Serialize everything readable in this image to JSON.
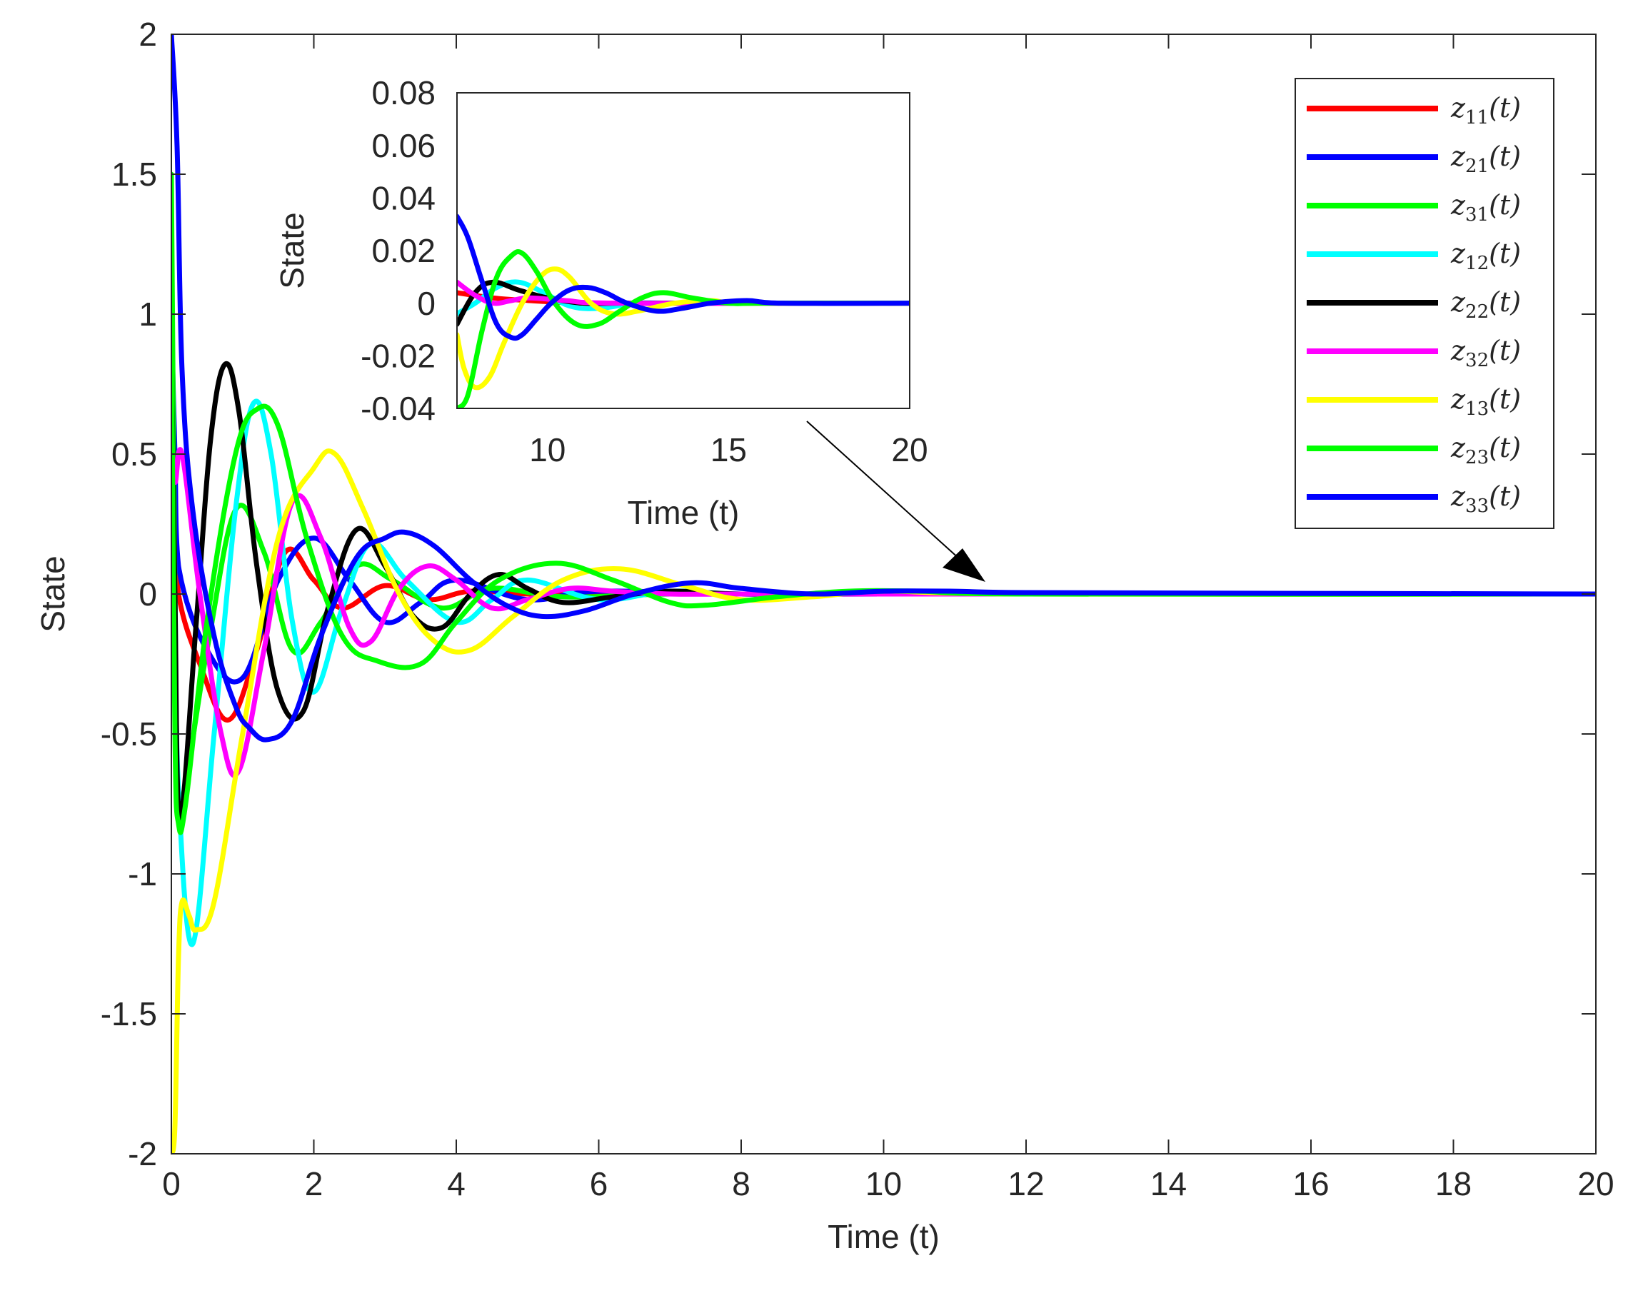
{
  "chart_data": [
    {
      "id": "main",
      "type": "line",
      "title": "",
      "xlabel": "Time (t)",
      "ylabel": "State",
      "xlim": [
        0,
        20
      ],
      "ylim": [
        -2,
        2
      ],
      "xticks": [
        0,
        2,
        4,
        6,
        8,
        10,
        12,
        14,
        16,
        18,
        20
      ],
      "yticks": [
        -2,
        -1.5,
        -1,
        -0.5,
        0,
        0.5,
        1,
        1.5,
        2
      ],
      "grid": false,
      "legend_position": "top-right",
      "series": [
        {
          "name": "z11(t)",
          "label_base": "z",
          "label_sub": "11",
          "label_arg": "(t)",
          "color": "#ff0000",
          "x": [
            0,
            0.05,
            0.1,
            0.4,
            0.8,
            1.2,
            1.6,
            2.0,
            2.4,
            3.0,
            3.6,
            4.2,
            5.0,
            6.0,
            8.0,
            10.0,
            20.0
          ],
          "y": [
            0.6,
            0.3,
            0.0,
            -0.25,
            -0.45,
            -0.2,
            0.15,
            0.05,
            -0.05,
            0.03,
            -0.02,
            0.01,
            0.0,
            0.0,
            0.0,
            0.0,
            0.0
          ]
        },
        {
          "name": "z21(t)",
          "label_base": "z",
          "label_sub": "21",
          "label_arg": "(t)",
          "color": "#0000ff",
          "x": [
            0,
            0.05,
            0.1,
            0.5,
            1.0,
            1.5,
            2.0,
            2.5,
            3.0,
            3.5,
            4.0,
            5.0,
            6.0,
            8.0,
            10.0,
            20.0
          ],
          "y": [
            1.0,
            0.5,
            0.1,
            -0.2,
            -0.3,
            0.05,
            0.2,
            0.05,
            -0.1,
            -0.03,
            0.05,
            -0.02,
            0.01,
            0.0,
            0.0,
            0.0
          ]
        },
        {
          "name": "z31(t)",
          "label_base": "z",
          "label_sub": "31",
          "label_arg": "(t)",
          "color": "#00ff00",
          "x": [
            0,
            0.05,
            0.1,
            0.5,
            0.9,
            1.3,
            1.7,
            2.1,
            2.6,
            3.1,
            3.8,
            4.5,
            5.5,
            7.0,
            9.0,
            20.0
          ],
          "y": [
            1.5,
            0.0,
            -0.75,
            -0.2,
            0.3,
            0.15,
            -0.2,
            -0.1,
            0.1,
            0.05,
            -0.05,
            0.02,
            -0.01,
            0.0,
            0.0,
            0.0
          ]
        },
        {
          "name": "z12(t)",
          "label_base": "z",
          "label_sub": "12",
          "label_arg": "(t)",
          "color": "#00ffff",
          "x": [
            0,
            0.05,
            0.1,
            0.3,
            0.6,
            0.9,
            1.15,
            1.4,
            1.7,
            2.0,
            2.4,
            2.8,
            3.3,
            4.0,
            4.5,
            5.0,
            6.0,
            7.0,
            8.0,
            10.0,
            20.0
          ],
          "y": [
            0.7,
            0.0,
            -0.7,
            -1.25,
            -0.5,
            0.3,
            0.68,
            0.5,
            -0.1,
            -0.35,
            -0.05,
            0.18,
            0.05,
            -0.1,
            -0.02,
            0.05,
            -0.02,
            0.01,
            0.0,
            0.0,
            0.0
          ]
        },
        {
          "name": "z22(t)",
          "label_base": "z",
          "label_sub": "22",
          "label_arg": "(t)",
          "color": "#000000",
          "x": [
            0,
            0.05,
            0.12,
            0.35,
            0.55,
            0.75,
            0.95,
            1.2,
            1.5,
            1.85,
            2.2,
            2.6,
            3.0,
            3.4,
            3.8,
            4.2,
            4.6,
            5.0,
            5.5,
            6.2,
            7.0,
            8.0,
            10.0,
            20.0
          ],
          "y": [
            0.9,
            0.0,
            -0.8,
            -0.1,
            0.55,
            0.82,
            0.65,
            0.1,
            -0.35,
            -0.42,
            -0.05,
            0.23,
            0.1,
            -0.08,
            -0.12,
            0.0,
            0.07,
            0.02,
            -0.03,
            -0.01,
            0.01,
            0.0,
            0.0,
            0.0
          ]
        },
        {
          "name": "z32(t)",
          "label_base": "z",
          "label_sub": "32",
          "label_arg": "(t)",
          "color": "#ff00ff",
          "x": [
            0,
            0.05,
            0.15,
            0.4,
            0.7,
            0.95,
            1.3,
            1.7,
            2.1,
            2.5,
            2.8,
            3.2,
            3.6,
            4.0,
            4.5,
            5.0,
            5.6,
            6.2,
            7.0,
            8.0,
            10.0,
            20.0
          ],
          "y": [
            0.6,
            0.4,
            0.5,
            0.0,
            -0.5,
            -0.63,
            -0.2,
            0.33,
            0.2,
            -0.12,
            -0.17,
            0.02,
            0.1,
            0.05,
            -0.05,
            -0.02,
            0.02,
            0.01,
            0.0,
            0.0,
            0.0,
            0.0
          ]
        },
        {
          "name": "z13(t)",
          "label_base": "z",
          "label_sub": "13",
          "label_arg": "(t)",
          "color": "#ffff00",
          "x": [
            0,
            0.05,
            0.1,
            0.15,
            0.25,
            0.35,
            0.6,
            1.0,
            1.5,
            2.0,
            2.3,
            2.7,
            3.2,
            3.7,
            4.2,
            4.8,
            5.5,
            6.3,
            7.2,
            8.0,
            9.0,
            10.0,
            12.0,
            20.0
          ],
          "y": [
            -2.0,
            -1.9,
            -1.3,
            -1.1,
            -1.15,
            -1.2,
            -1.1,
            -0.5,
            0.2,
            0.45,
            0.5,
            0.3,
            0.0,
            -0.17,
            -0.2,
            -0.08,
            0.05,
            0.09,
            0.03,
            -0.02,
            -0.01,
            0.01,
            0.0,
            0.0
          ]
        },
        {
          "name": "z23(t)",
          "label_base": "z",
          "label_sub": "23",
          "label_arg": "(t)",
          "color": "#00ff00",
          "x": [
            0,
            0.05,
            0.1,
            0.2,
            0.5,
            0.9,
            1.2,
            1.5,
            1.9,
            2.4,
            2.9,
            3.5,
            4.0,
            4.6,
            5.4,
            6.2,
            7.0,
            7.5,
            8.5,
            9.5,
            10.5,
            12.0,
            20.0
          ],
          "y": [
            1.0,
            -0.5,
            -0.82,
            -0.75,
            -0.1,
            0.5,
            0.66,
            0.6,
            0.2,
            -0.15,
            -0.24,
            -0.25,
            -0.1,
            0.05,
            0.11,
            0.05,
            -0.03,
            -0.04,
            -0.01,
            0.01,
            0.01,
            0.0,
            0.0
          ]
        },
        {
          "name": "z33(t)",
          "label_base": "z",
          "label_sub": "33",
          "label_arg": "(t)",
          "color": "#0000ff",
          "x": [
            0,
            0.08,
            0.15,
            0.3,
            0.6,
            0.9,
            1.1,
            1.35,
            1.7,
            2.1,
            2.6,
            3.0,
            3.3,
            3.7,
            4.2,
            4.7,
            5.2,
            5.8,
            6.5,
            7.3,
            8.0,
            9.0,
            10.0,
            11.0,
            12.0,
            20.0
          ],
          "y": [
            2.0,
            1.6,
            0.8,
            0.3,
            -0.15,
            -0.4,
            -0.48,
            -0.52,
            -0.45,
            -0.15,
            0.13,
            0.2,
            0.22,
            0.17,
            0.05,
            -0.04,
            -0.08,
            -0.06,
            0.0,
            0.04,
            0.02,
            0.0,
            0.01,
            0.01,
            0.005,
            0.0
          ]
        }
      ]
    },
    {
      "id": "inset",
      "type": "line",
      "title": "",
      "xlabel": "Time (t)",
      "ylabel": "State",
      "xlim": [
        7.5,
        20
      ],
      "ylim": [
        -0.04,
        0.08
      ],
      "xticks": [
        10,
        15,
        20
      ],
      "yticks": [
        -0.04,
        -0.02,
        0,
        0.02,
        0.04,
        0.06,
        0.08
      ],
      "grid": false,
      "series": [
        {
          "name": "z11(t)",
          "color": "#ff0000",
          "x": [
            7.5,
            8.5,
            9.5,
            11.0,
            13.0,
            20.0
          ],
          "y": [
            0.004,
            0.002,
            0.001,
            0.0,
            0.0,
            0.0
          ]
        },
        {
          "name": "z12(t)",
          "color": "#00ffff",
          "x": [
            7.5,
            8.0,
            8.6,
            9.2,
            9.9,
            10.6,
            11.4,
            12.5,
            14.0,
            20.0
          ],
          "y": [
            -0.004,
            0.0,
            0.006,
            0.008,
            0.004,
            -0.001,
            -0.002,
            0.0,
            0.0,
            0.0
          ]
        },
        {
          "name": "z22(t)",
          "color": "#000000",
          "x": [
            7.5,
            8.0,
            8.5,
            9.2,
            10.0,
            11.0,
            12.0,
            14.0,
            20.0
          ],
          "y": [
            -0.008,
            0.004,
            0.008,
            0.005,
            0.002,
            0.0,
            0.0,
            0.0,
            0.0
          ]
        },
        {
          "name": "z32(t)",
          "color": "#ff00ff",
          "x": [
            7.5,
            8.0,
            8.5,
            9.0,
            9.5,
            10.5,
            12.0,
            20.0
          ],
          "y": [
            0.008,
            0.003,
            0.0,
            0.001,
            0.002,
            0.001,
            0.0,
            0.0
          ]
        },
        {
          "name": "z13(t)",
          "color": "#ffff00",
          "x": [
            7.5,
            7.7,
            8.0,
            8.4,
            8.8,
            9.3,
            9.8,
            10.2,
            10.6,
            11.2,
            11.8,
            12.5,
            13.5,
            14.5,
            15.5,
            20.0
          ],
          "y": [
            -0.012,
            -0.025,
            -0.032,
            -0.028,
            -0.015,
            0.0,
            0.01,
            0.013,
            0.01,
            0.0,
            -0.004,
            -0.003,
            0.0,
            0.001,
            0.0,
            0.0
          ]
        },
        {
          "name": "z23(t)",
          "color": "#00ff00",
          "x": [
            7.5,
            7.8,
            8.2,
            8.6,
            9.0,
            9.3,
            9.7,
            10.2,
            10.8,
            11.4,
            12.0,
            12.6,
            13.2,
            14.0,
            15.0,
            16.0,
            20.0
          ],
          "y": [
            -0.04,
            -0.035,
            -0.01,
            0.01,
            0.018,
            0.019,
            0.012,
            0.0,
            -0.008,
            -0.008,
            -0.003,
            0.002,
            0.004,
            0.002,
            0.0,
            0.0,
            0.0
          ]
        },
        {
          "name": "z33(t)",
          "color": "#0000ff",
          "x": [
            7.5,
            7.8,
            8.2,
            8.6,
            9.0,
            9.3,
            9.7,
            10.1,
            10.6,
            11.1,
            11.6,
            12.2,
            13.0,
            13.7,
            14.5,
            15.5,
            16.5,
            20.0
          ],
          "y": [
            0.033,
            0.025,
            0.008,
            -0.008,
            -0.013,
            -0.012,
            -0.006,
            0.0,
            0.005,
            0.006,
            0.004,
            0.0,
            -0.003,
            -0.002,
            0.0,
            0.001,
            0.0,
            0.0
          ]
        }
      ]
    }
  ]
}
